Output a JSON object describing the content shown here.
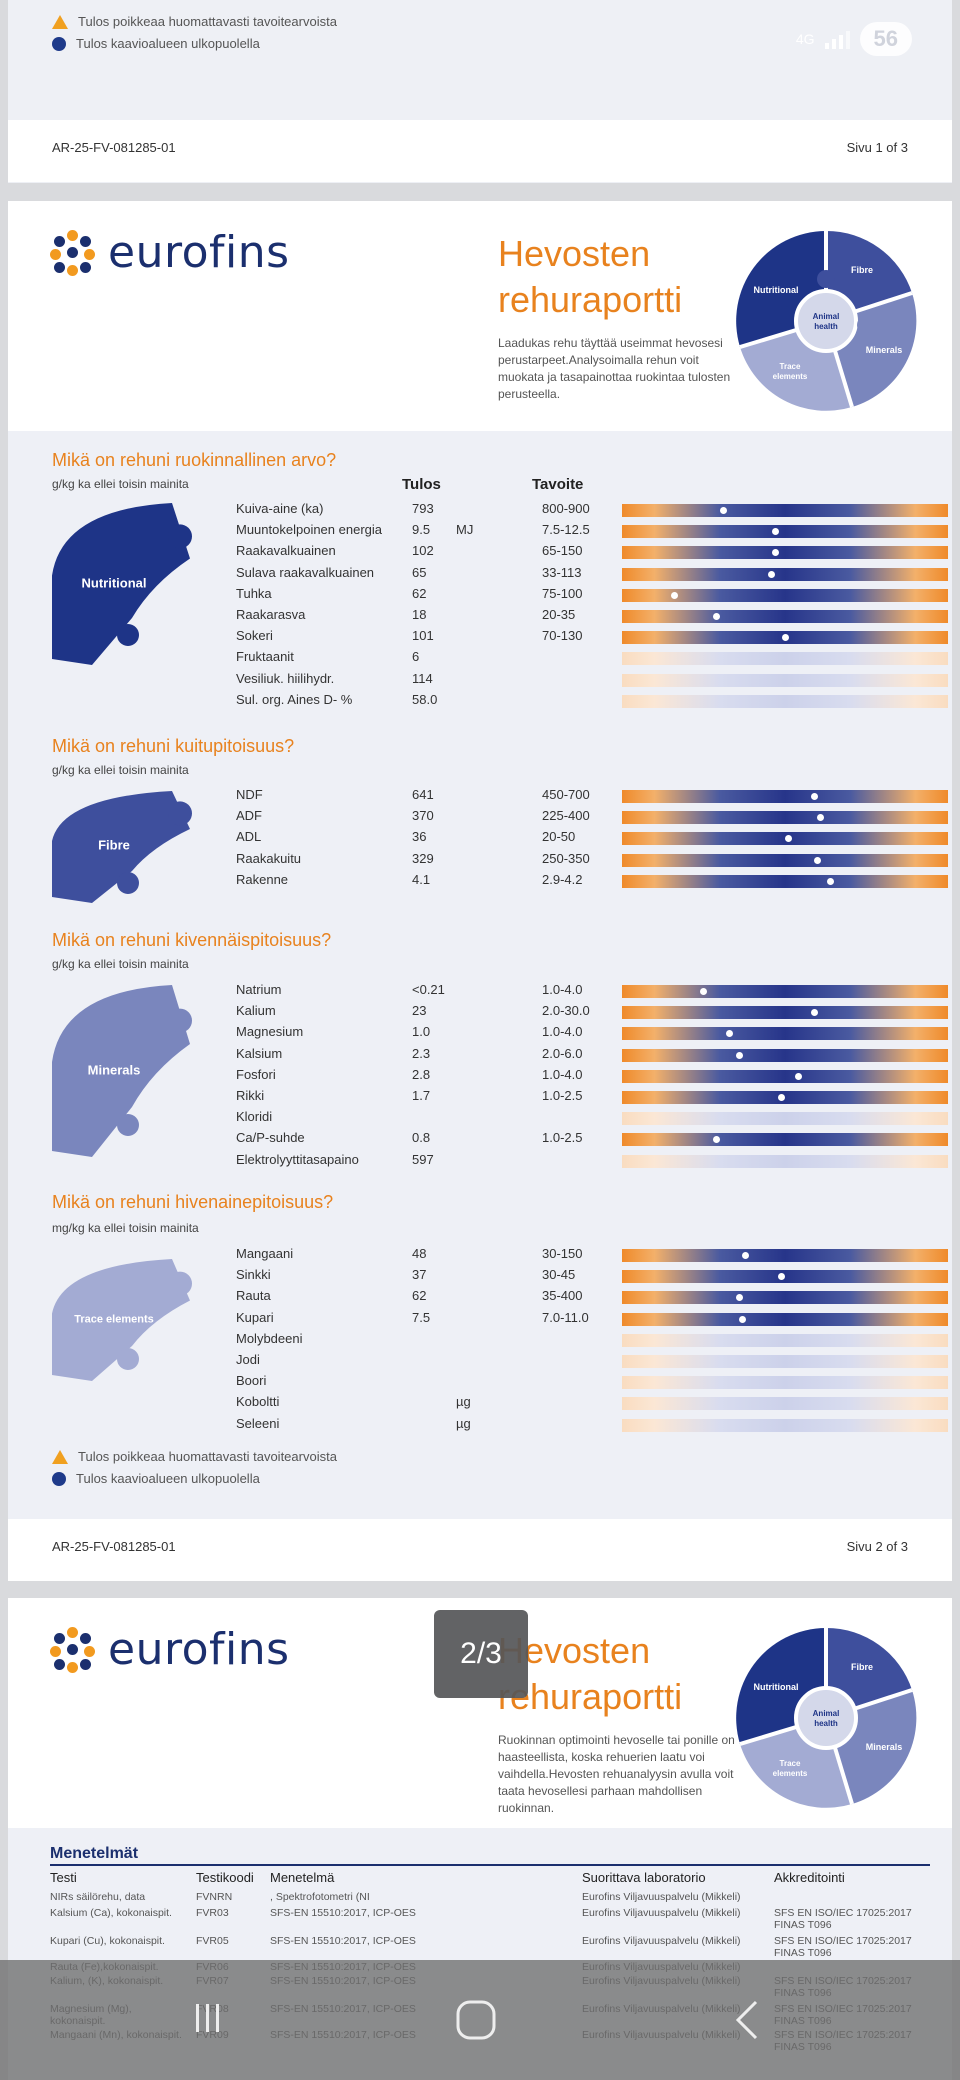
{
  "page1": {
    "warning_text": "Tulos poikkeaa huomattavasti tavoitearvoista",
    "outside_text": "Tulos kaavioalueen ulkopuolella",
    "footer_id": "AR-25-FV-081285-01",
    "footer_page": "Sivu 1 of 3",
    "status": {
      "network": "4G",
      "battery": "56"
    }
  },
  "header": {
    "logo_text": "eurofins",
    "title_line1": "Hevosten",
    "title_line2": "rehuraportti",
    "subtitle_p2": "Laadukas rehu täyttää useimmat hevosesi perustarpeet.Analysoimalla rehun voit muokata ja tasapainottaa ruokintaa tulosten perusteella.",
    "subtitle_p3": "Ruokinnan optimointi hevoselle tai ponille on haasteellista, koska rehuerien laatu voi vaihdella.Hevosten rehuanalyysin avulla voit taata hevosellesi parhaan mahdollisen ruokinnan.",
    "puzzle": {
      "nutritional": "Nutritional",
      "fibre": "Fibre",
      "animal1": "Animal",
      "animal2": "health",
      "minerals": "Minerals",
      "trace1": "Trace",
      "trace2": "elements"
    }
  },
  "columns": {
    "result": "Tulos",
    "target": "Tavoite"
  },
  "sections": [
    {
      "title": "Mikä on rehuni ruokinnallinen arvo?",
      "unit": "g/kg ka ellei toisin mainita",
      "piece_label": "Nutritional",
      "piece_color": "#1e3487",
      "rows": [
        {
          "label": "Kuiva-aine (ka)",
          "value": "793",
          "unit": "",
          "target": "800-900",
          "marker": 0.31
        },
        {
          "label": "Muuntokelpoinen energia",
          "value": "9.5",
          "unit": "MJ",
          "target": "7.5-12.5",
          "marker": 0.47
        },
        {
          "label": "Raakavalkuainen",
          "value": "102",
          "unit": "",
          "target": "65-150",
          "marker": 0.47
        },
        {
          "label": "Sulava raakavalkuainen",
          "value": "65",
          "unit": "",
          "target": "33-113",
          "marker": 0.46
        },
        {
          "label": "Tuhka",
          "value": "62",
          "unit": "",
          "target": "75-100",
          "marker": 0.16
        },
        {
          "label": "Raakarasva",
          "value": "18",
          "unit": "",
          "target": "20-35",
          "marker": 0.29
        },
        {
          "label": "Sokeri",
          "value": "101",
          "unit": "",
          "target": "70-130",
          "marker": 0.5
        },
        {
          "label": "Fruktaanit",
          "value": "6",
          "unit": "",
          "target": "",
          "marker": null
        },
        {
          "label": "Vesiliuk. hiilihydr.",
          "value": "114",
          "unit": "",
          "target": "",
          "marker": null
        },
        {
          "label": "Sul. org. Aines D- %",
          "value": "58.0",
          "unit": "",
          "target": "",
          "marker": null
        }
      ]
    },
    {
      "title": "Mikä on rehuni kuitupitoisuus?",
      "unit": "g/kg ka ellei toisin mainita",
      "piece_label": "Fibre",
      "piece_color": "#3e4f9d",
      "rows": [
        {
          "label": "NDF",
          "value": "641",
          "unit": "",
          "target": "450-700",
          "marker": 0.59
        },
        {
          "label": "ADF",
          "value": "370",
          "unit": "",
          "target": "225-400",
          "marker": 0.61
        },
        {
          "label": "ADL",
          "value": "36",
          "unit": "",
          "target": "20-50",
          "marker": 0.51
        },
        {
          "label": "Raakakuitu",
          "value": "329",
          "unit": "",
          "target": "250-350",
          "marker": 0.6
        },
        {
          "label": "Rakenne",
          "value": "4.1",
          "unit": "",
          "target": "2.9-4.2",
          "marker": 0.64
        }
      ]
    },
    {
      "title": "Mikä on rehuni kivennäispitoisuus?",
      "unit": "g/kg ka ellei toisin mainita",
      "piece_label": "Minerals",
      "piece_color": "#7a86bd",
      "rows": [
        {
          "label": "Natrium",
          "value": "<0.21",
          "unit": "",
          "target": "1.0-4.0",
          "marker": 0.25
        },
        {
          "label": "Kalium",
          "value": "23",
          "unit": "",
          "target": "2.0-30.0",
          "marker": 0.59
        },
        {
          "label": "Magnesium",
          "value": "1.0",
          "unit": "",
          "target": "1.0-4.0",
          "marker": 0.33
        },
        {
          "label": "Kalsium",
          "value": "2.3",
          "unit": "",
          "target": "2.0-6.0",
          "marker": 0.36
        },
        {
          "label": "Fosfori",
          "value": "2.8",
          "unit": "",
          "target": "1.0-4.0",
          "marker": 0.54
        },
        {
          "label": "Rikki",
          "value": "1.7",
          "unit": "",
          "target": "1.0-2.5",
          "marker": 0.49
        },
        {
          "label": "Kloridi",
          "value": "",
          "unit": "",
          "target": "",
          "marker": null
        },
        {
          "label": "Ca/P-suhde",
          "value": "0.8",
          "unit": "",
          "target": "1.0-2.5",
          "marker": 0.29
        },
        {
          "label": "Elektrolyyttitasapaino",
          "value": "597",
          "unit": "",
          "target": "",
          "marker": null
        }
      ]
    },
    {
      "title": "Mikä on rehuni hivenainepitoisuus?",
      "unit": "mg/kg ka ellei toisin mainita",
      "piece_label": "Trace elements",
      "piece_color": "#a3abd3",
      "rows": [
        {
          "label": "Mangaani",
          "value": "48",
          "unit": "",
          "target": "30-150",
          "marker": 0.38
        },
        {
          "label": "Sinkki",
          "value": "37",
          "unit": "",
          "target": "30-45",
          "marker": 0.49
        },
        {
          "label": "Rauta",
          "value": "62",
          "unit": "",
          "target": "35-400",
          "marker": 0.36
        },
        {
          "label": "Kupari",
          "value": "7.5",
          "unit": "",
          "target": "7.0-11.0",
          "marker": 0.37
        },
        {
          "label": "Molybdeeni",
          "value": "",
          "unit": "",
          "target": "",
          "marker": null
        },
        {
          "label": "Jodi",
          "value": "",
          "unit": "",
          "target": "",
          "marker": null
        },
        {
          "label": "Boori",
          "value": "",
          "unit": "",
          "target": "",
          "marker": null
        },
        {
          "label": "Koboltti",
          "value": "",
          "unit": "µg",
          "target": "",
          "marker": null
        },
        {
          "label": "Seleeni",
          "value": "",
          "unit": "µg",
          "target": "",
          "marker": null
        }
      ]
    }
  ],
  "legend": {
    "warning": "Tulos poikkeaa huomattavasti tavoitearvoista",
    "outside": "Tulos kaavioalueen ulkopuolella"
  },
  "page2_footer": {
    "id": "AR-25-FV-081285-01",
    "page": "Sivu 2 of 3"
  },
  "methods": {
    "title": "Menetelmät",
    "headers": {
      "test": "Testi",
      "code": "Testikoodi",
      "method": "Menetelmä",
      "lab": "Suorittava laboratorio",
      "accr": "Akkreditointi"
    },
    "rows": [
      {
        "test": "NIRs säilörehu, data",
        "code": "FVNRN",
        "method": ", Spektrofotometri (NI",
        "lab": "Eurofins Viljavuuspalvelu (Mikkeli)",
        "accr": ""
      },
      {
        "test": "Kalsium (Ca), kokonaispit.",
        "code": "FVR03",
        "method": "SFS-EN 15510:2017, ICP-OES",
        "lab": "Eurofins Viljavuuspalvelu (Mikkeli)",
        "accr": "SFS EN ISO/IEC 17025:2017 FINAS T096"
      },
      {
        "test": "Kupari (Cu), kokonaispit.",
        "code": "FVR05",
        "method": "SFS-EN 15510:2017, ICP-OES",
        "lab": "Eurofins Viljavuuspalvelu (Mikkeli)",
        "accr": "SFS EN ISO/IEC 17025:2017 FINAS T096"
      },
      {
        "test": "Rauta (Fe),kokonaispit.",
        "code": "FVR06",
        "method": "SFS-EN 15510:2017, ICP-OES",
        "lab": "Eurofins Viljavuuspalvelu (Mikkeli)",
        "accr": ""
      },
      {
        "test": "Kalium, (K), kokonaispit.",
        "code": "FVR07",
        "method": "SFS-EN 15510:2017, ICP-OES",
        "lab": "Eurofins Viljavuuspalvelu (Mikkeli)",
        "accr": "SFS EN ISO/IEC 17025:2017 FINAS T096"
      },
      {
        "test": "Magnesium (Mg), kokonaispit.",
        "code": "FVR08",
        "method": "SFS-EN 15510:2017, ICP-OES",
        "lab": "Eurofins Viljavuuspalvelu (Mikkeli)",
        "accr": "SFS EN ISO/IEC 17025:2017 FINAS T096"
      },
      {
        "test": "Mangaani (Mn), kokonaispit.",
        "code": "FVR09",
        "method": "SFS-EN 15510:2017, ICP-OES",
        "lab": "Eurofins Viljavuuspalvelu (Mikkeli)",
        "accr": "SFS EN ISO/IEC 17025:2017 FINAS T096"
      }
    ]
  },
  "viewer": {
    "page_indicator": "2/3"
  },
  "colors": {
    "accent": "#e8821e",
    "brand": "#1b2f6e"
  }
}
